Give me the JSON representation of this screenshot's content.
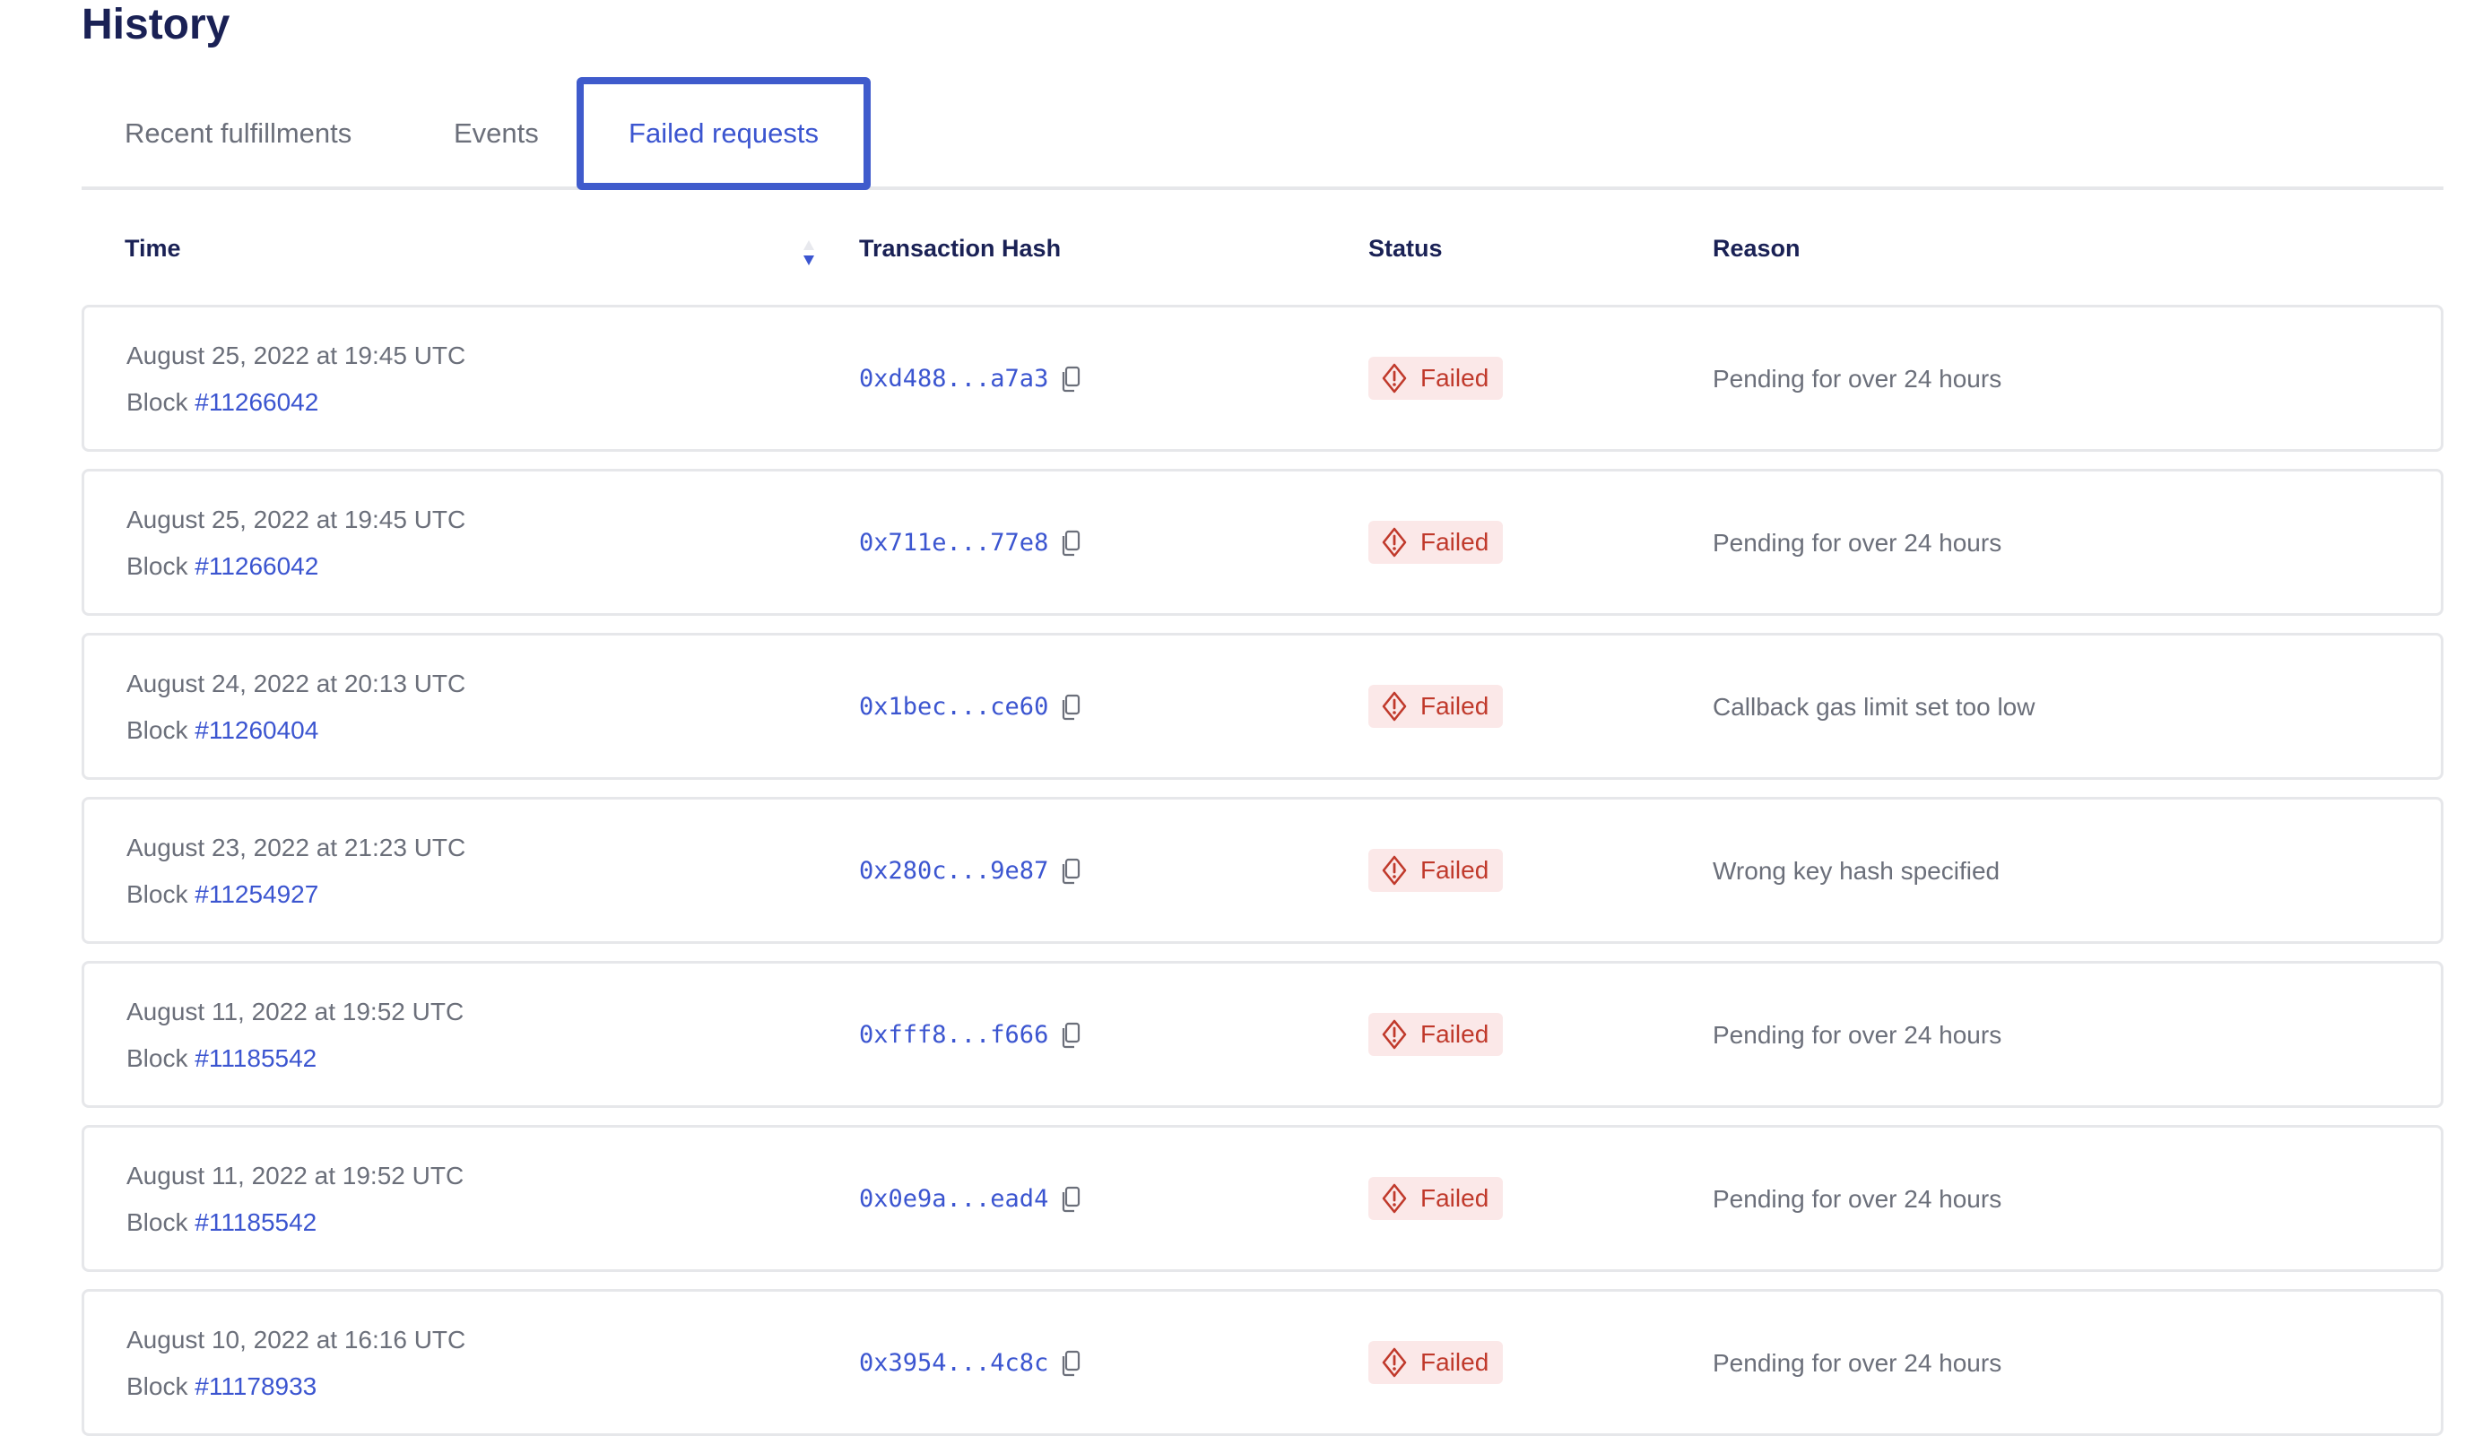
{
  "page": {
    "title": "History"
  },
  "tabs": [
    {
      "label": "Recent fulfillments"
    },
    {
      "label": "Events"
    },
    {
      "label": "Failed requests",
      "active": true
    }
  ],
  "table": {
    "headers": {
      "time": "Time",
      "hash": "Transaction Hash",
      "status": "Status",
      "reason": "Reason"
    },
    "sort": {
      "column": "Time",
      "direction": "descending"
    },
    "block_prefix": "Block",
    "rows": [
      {
        "time": "August 25, 2022 at 19:45 UTC",
        "block": "#11266042",
        "hash": "0xd488...a7a3",
        "status": "Failed",
        "reason": "Pending for over 24 hours"
      },
      {
        "time": "August 25, 2022 at 19:45 UTC",
        "block": "#11266042",
        "hash": "0x711e...77e8",
        "status": "Failed",
        "reason": "Pending for over 24 hours"
      },
      {
        "time": "August 24, 2022 at 20:13 UTC",
        "block": "#11260404",
        "hash": "0x1bec...ce60",
        "status": "Failed",
        "reason": "Callback gas limit set too low"
      },
      {
        "time": "August 23, 2022 at 21:23 UTC",
        "block": "#11254927",
        "hash": "0x280c...9e87",
        "status": "Failed",
        "reason": "Wrong key hash specified"
      },
      {
        "time": "August 11, 2022 at 19:52 UTC",
        "block": "#11185542",
        "hash": "0xfff8...f666",
        "status": "Failed",
        "reason": "Pending for over 24 hours"
      },
      {
        "time": "August 11, 2022 at 19:52 UTC",
        "block": "#11185542",
        "hash": "0x0e9a...ead4",
        "status": "Failed",
        "reason": "Pending for over 24 hours"
      },
      {
        "time": "August 10, 2022 at 16:16 UTC",
        "block": "#11178933",
        "hash": "0x3954...4c8c",
        "status": "Failed",
        "reason": "Pending for over 24 hours"
      }
    ]
  },
  "colors": {
    "accent": "#3b55d0",
    "title": "#1a2155",
    "failed": "#c0392b",
    "failed_bg": "#fbe8e8"
  },
  "icons": {
    "copy": "copy-icon",
    "failed": "warning-diamond-icon",
    "sort": "sort-arrow-icon"
  }
}
